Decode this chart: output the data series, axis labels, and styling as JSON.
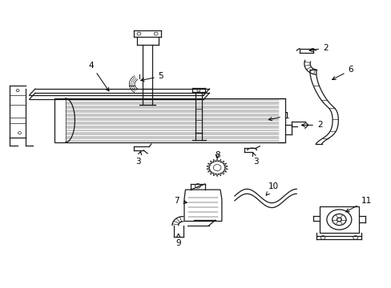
{
  "bg_color": "#ffffff",
  "line_color": "#1a1a1a",
  "xlim": [
    0,
    10
  ],
  "ylim": [
    0,
    9
  ],
  "figsize": [
    4.89,
    3.6
  ],
  "dpi": 100
}
